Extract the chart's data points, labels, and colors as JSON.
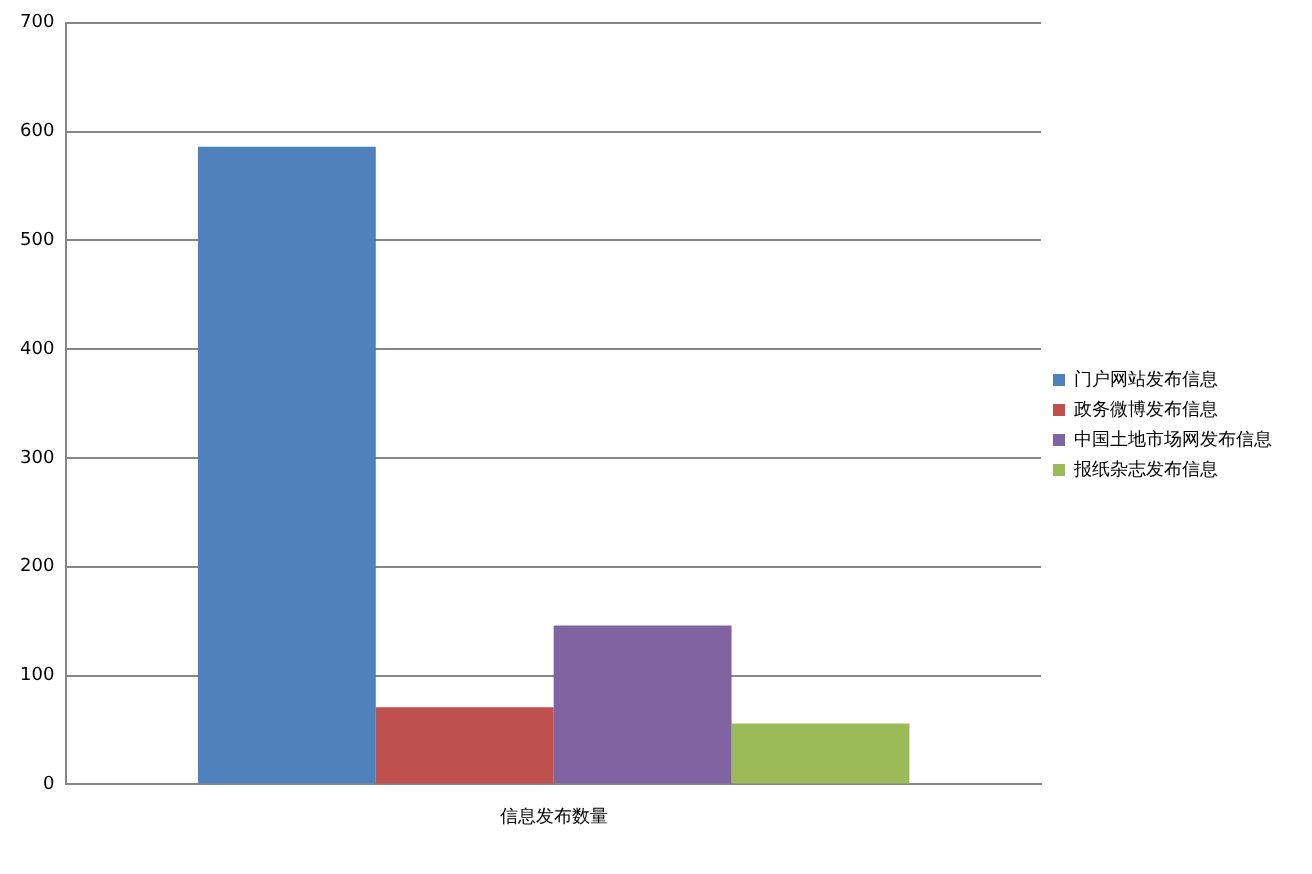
{
  "chart_data": {
    "type": "bar",
    "categories": [
      "信息发布数量"
    ],
    "series": [
      {
        "name": "门户网站发布信息",
        "color": "#4f81bd",
        "values": [
          586
        ]
      },
      {
        "name": "政务微博发布信息",
        "color": "#c0504d",
        "values": [
          71
        ]
      },
      {
        "name": "中国土地市场网发布信息",
        "color": "#8064a2",
        "values": [
          146
        ]
      },
      {
        "name": "报纸杂志发布信息",
        "color": "#9bbb59",
        "values": [
          56
        ]
      }
    ],
    "ylim": [
      0,
      700
    ],
    "yticks": [
      0,
      100,
      200,
      300,
      400,
      500,
      600,
      700
    ],
    "grid": "y",
    "legend": "right"
  }
}
